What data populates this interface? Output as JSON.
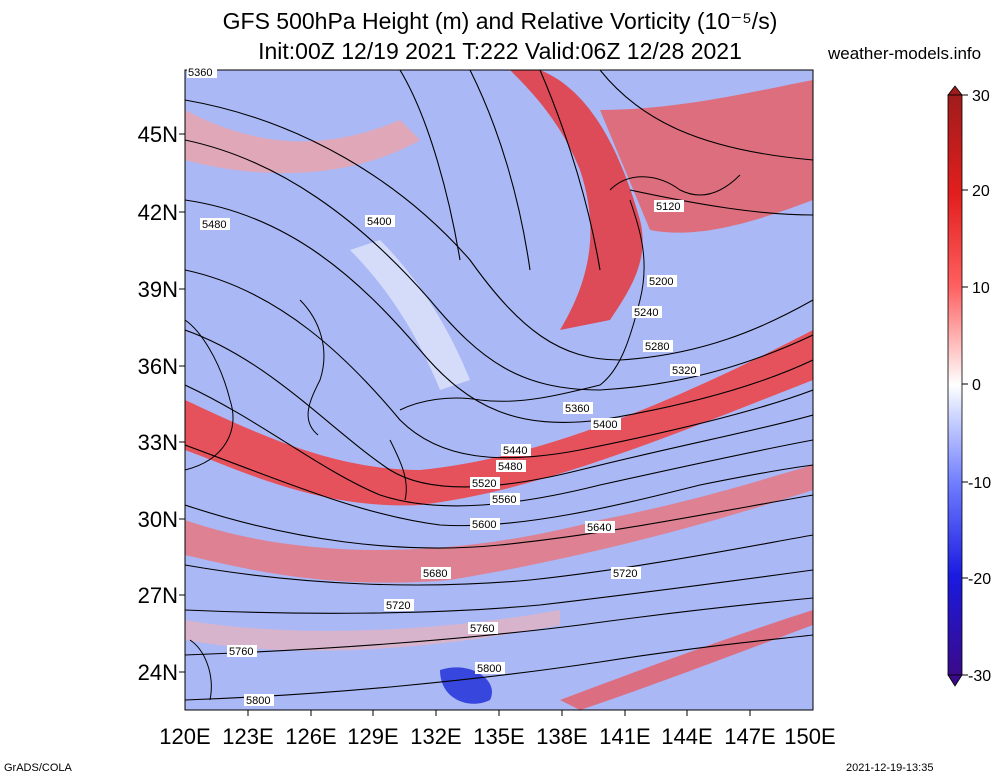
{
  "title": {
    "line1": "GFS 500hPa Height (m) and Relative Vorticity (10⁻⁵/s)",
    "line2": "Init:00Z 12/19 2021 T:222 Valid:06Z 12/28 2021"
  },
  "site": "weather-models.info",
  "footer": {
    "left": "GrADS/COLA",
    "right": "2021-12-19-13:35"
  },
  "map": {
    "lon_labels": [
      "120E",
      "123E",
      "126E",
      "129E",
      "132E",
      "135E",
      "138E",
      "141E",
      "144E",
      "147E",
      "150E"
    ],
    "lat_labels": [
      "45N",
      "42N",
      "39N",
      "36N",
      "33N",
      "30N",
      "27N",
      "24N"
    ],
    "contour_labels": [
      "5360",
      "5480",
      "5400",
      "5120",
      "5200",
      "5240",
      "5280",
      "5320",
      "5360",
      "5400",
      "5440",
      "5480",
      "5520",
      "5560",
      "5600",
      "5640",
      "5680",
      "5720",
      "5720",
      "5760",
      "5760",
      "5800",
      "5800"
    ]
  },
  "colorbar": {
    "ticks": [
      "30",
      "20",
      "10",
      "0",
      "-10",
      "-20",
      "-30"
    ],
    "colors": {
      "max": "#a01c1c",
      "pos": "#ff2a2a",
      "neutral": "#ffffff",
      "neg": "#3a3aff",
      "min": "#3a0a8a"
    }
  }
}
